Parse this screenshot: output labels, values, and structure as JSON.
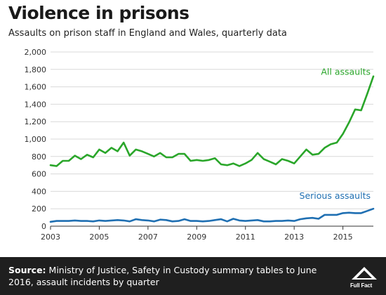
{
  "header": {
    "title": "Violence in prisons",
    "subtitle": "Assaults on prison staff in England and Wales, quarterly data"
  },
  "footer": {
    "source_label": "Source:",
    "source_text": "Ministry of Justice, Safety in Custody summary tables to June 2016, assault incidents by quarter",
    "logo_text": "Full Fact"
  },
  "colors": {
    "all_assaults": "#2aa62a",
    "serious_assaults": "#1f6fb2",
    "grid": "#d9d9d9",
    "footer_bg": "#1f1f1f"
  },
  "chart_data": {
    "type": "line",
    "title": "Violence in prisons",
    "subtitle": "Assaults on prison staff in England and Wales, quarterly data",
    "xlabel": "",
    "ylabel": "",
    "xlim": [
      2003,
      2016.25
    ],
    "ylim": [
      0,
      2000
    ],
    "x_ticks": [
      2003,
      2005,
      2007,
      2009,
      2011,
      2013,
      2015
    ],
    "x_tick_labels": [
      "2003",
      "2005",
      "2007",
      "2009",
      "2011",
      "2013",
      "2015"
    ],
    "y_ticks": [
      0,
      200,
      400,
      600,
      800,
      1000,
      1200,
      1400,
      1600,
      1800,
      2000
    ],
    "y_tick_labels": [
      "0",
      "200",
      "400",
      "600",
      "800",
      "1,000",
      "1,200",
      "1,400",
      "1,600",
      "1,800",
      "2,000"
    ],
    "grid": true,
    "x": [
      2003,
      2003.25,
      2003.5,
      2003.75,
      2004,
      2004.25,
      2004.5,
      2004.75,
      2005,
      2005.25,
      2005.5,
      2005.75,
      2006,
      2006.25,
      2006.5,
      2006.75,
      2007,
      2007.25,
      2007.5,
      2007.75,
      2008,
      2008.25,
      2008.5,
      2008.75,
      2009,
      2009.25,
      2009.5,
      2009.75,
      2010,
      2010.25,
      2010.5,
      2010.75,
      2011,
      2011.25,
      2011.5,
      2011.75,
      2012,
      2012.25,
      2012.5,
      2012.75,
      2013,
      2013.25,
      2013.5,
      2013.75,
      2014,
      2014.25,
      2014.5,
      2014.75,
      2015,
      2015.25,
      2015.5,
      2015.75,
      2016,
      2016.25
    ],
    "series": [
      {
        "name": "All assaults",
        "color": "#2aa62a",
        "values": [
          700,
          690,
          750,
          750,
          810,
          770,
          820,
          790,
          880,
          840,
          900,
          860,
          960,
          810,
          880,
          860,
          830,
          800,
          840,
          790,
          790,
          830,
          830,
          750,
          760,
          750,
          760,
          780,
          710,
          700,
          720,
          690,
          720,
          760,
          840,
          770,
          740,
          710,
          770,
          750,
          720,
          800,
          880,
          820,
          830,
          900,
          940,
          960,
          1060,
          1190,
          1340,
          1330,
          1520,
          1720
        ]
      },
      {
        "name": "Serious assaults",
        "color": "#1f6fb2",
        "values": [
          50,
          60,
          60,
          60,
          65,
          60,
          60,
          55,
          65,
          60,
          65,
          70,
          65,
          55,
          80,
          70,
          65,
          55,
          75,
          70,
          55,
          60,
          80,
          60,
          60,
          55,
          60,
          70,
          80,
          55,
          85,
          65,
          60,
          65,
          70,
          55,
          55,
          60,
          60,
          65,
          60,
          80,
          90,
          95,
          85,
          130,
          130,
          130,
          150,
          155,
          150,
          150,
          175,
          200
        ]
      }
    ]
  }
}
